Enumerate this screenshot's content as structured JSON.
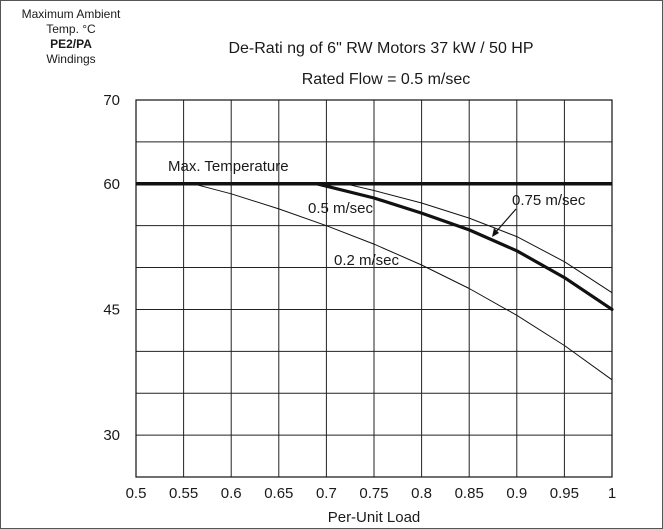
{
  "chart_data": {
    "type": "line",
    "title": "De-Rati ng of 6\"  RW  Motors 37 kW / 50 HP",
    "subtitle": "Rated Flow = 0.5 m/sec",
    "xlabel": "Per-Unit Load",
    "ylabel_lines": [
      "Maximum Ambient",
      "Temp.  °C",
      "PE2/PA",
      "Windings"
    ],
    "xlim": [
      0.5,
      1.0
    ],
    "ylim": [
      25,
      70
    ],
    "x_ticks": [
      "0.5",
      "0.55",
      "0.6",
      "0.65",
      "0.7",
      "0.75",
      "0.8",
      "0.85",
      "0.9",
      "0.95",
      "1"
    ],
    "y_ticks": [
      {
        "value": 30,
        "label": "30"
      },
      {
        "value": 45,
        "label": "45"
      },
      {
        "value": 60,
        "label": "60"
      },
      {
        "value": 70,
        "label": "70"
      }
    ],
    "grid": true,
    "max_temperature": {
      "label": "Max. Temperature",
      "value": 60
    },
    "series": [
      {
        "name": "0.2 m/sec",
        "x": [
          0.56,
          0.6,
          0.65,
          0.7,
          0.75,
          0.8,
          0.85,
          0.9,
          0.95,
          1.0
        ],
        "y": [
          60,
          58.8,
          57,
          55,
          52.8,
          50.3,
          47.5,
          44.3,
          40.7,
          36.6
        ]
      },
      {
        "name": "0.5 m/sec",
        "x": [
          0.69,
          0.75,
          0.8,
          0.85,
          0.9,
          0.95,
          1.0
        ],
        "y": [
          60,
          58.3,
          56.5,
          54.5,
          52,
          48.8,
          45.0
        ]
      },
      {
        "name": "0.75 m/sec",
        "x": [
          0.72,
          0.75,
          0.8,
          0.85,
          0.9,
          0.95,
          1.0
        ],
        "y": [
          60,
          59.2,
          57.7,
          55.9,
          53.7,
          50.7,
          47.0
        ]
      }
    ]
  }
}
